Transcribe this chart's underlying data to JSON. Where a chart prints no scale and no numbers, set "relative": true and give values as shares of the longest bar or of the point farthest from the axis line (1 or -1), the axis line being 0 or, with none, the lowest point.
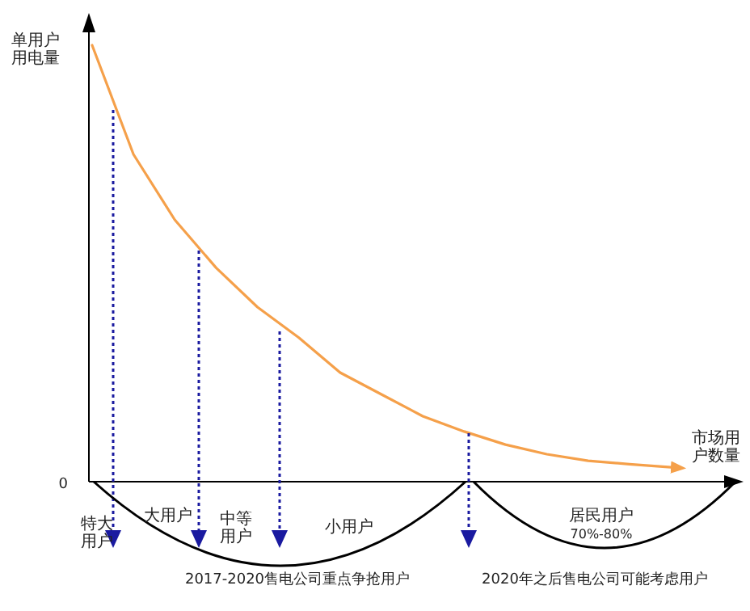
{
  "chart_data": {
    "type": "line",
    "relative": true,
    "ylabel": "单用户用电量",
    "xlabel": "市场用户数量",
    "categories": [
      null,
      null,
      null,
      null,
      null,
      null,
      null,
      null,
      null,
      null,
      null,
      null,
      null,
      null,
      null
    ],
    "series": [
      {
        "color": "#f5a04a",
        "values": [
          1,
          0.75,
          0.6,
          0.49,
          0.4,
          0.33,
          0.25,
          0.2,
          0.15,
          0.115,
          0.085,
          0.063,
          0.048,
          0.04,
          0.033
        ]
      }
    ],
    "marker": "none",
    "line_style": "solid",
    "annotations": [
      "0",
      "特大用户",
      "大用户",
      "中等用户",
      "小用户",
      "2017-2020售电公司重点争抢用户",
      "居民用户",
      "70%-80%",
      "2020年之后售电公司可能考虑用户"
    ]
  }
}
